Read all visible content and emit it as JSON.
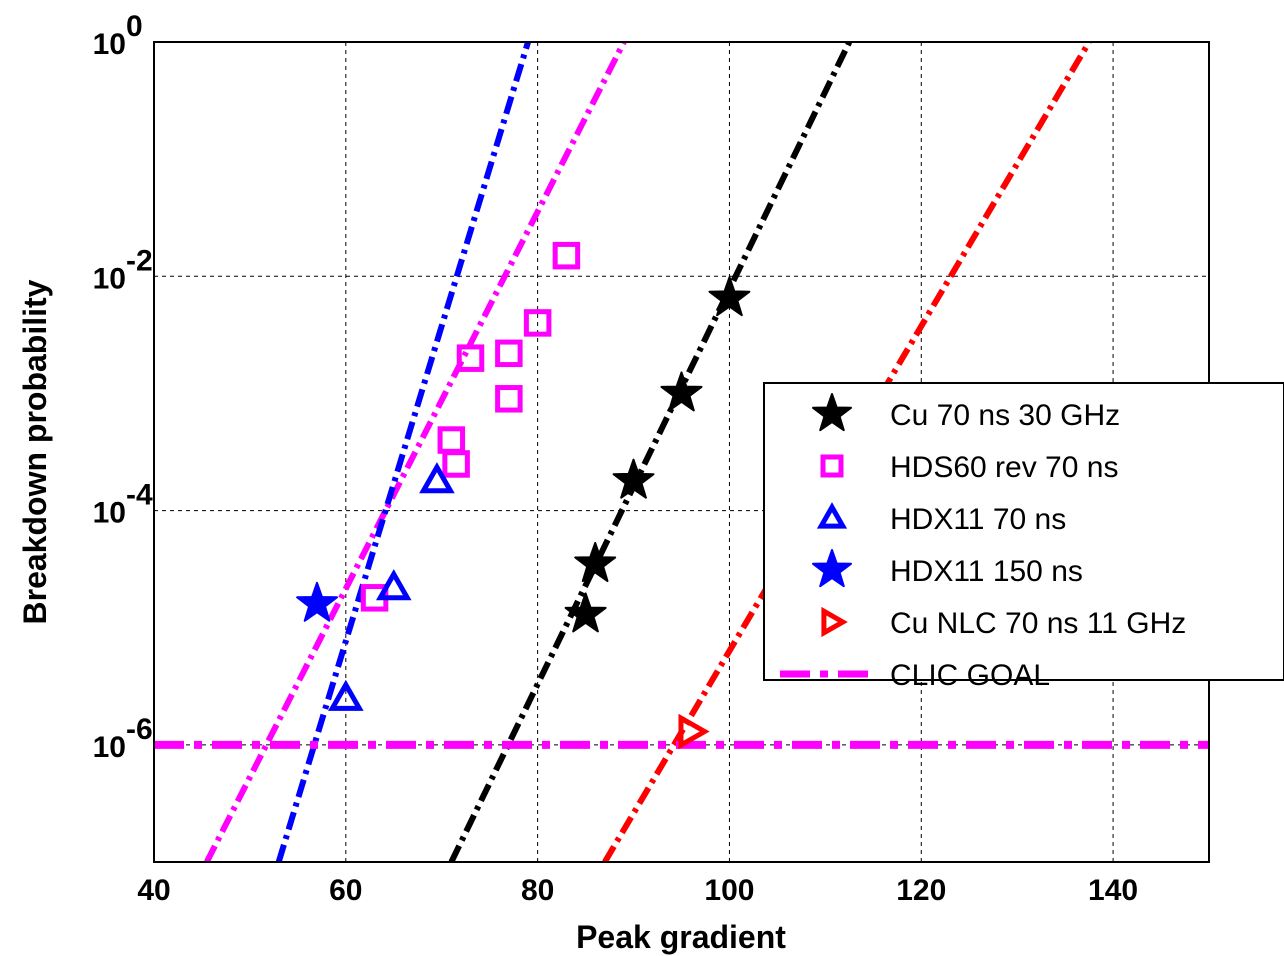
{
  "chart_data": {
    "type": "scatter",
    "title": "",
    "xlabel": "Peak gradient",
    "ylabel": "Breakdown probability",
    "xlim": [
      40,
      150
    ],
    "ylim": [
      1e-07,
      1
    ],
    "yscale": "log",
    "grid": true,
    "legend_position": "right",
    "x_ticks": [
      {
        "value": 40,
        "label": "40"
      },
      {
        "value": 60,
        "label": "60"
      },
      {
        "value": 80,
        "label": "80"
      },
      {
        "value": 100,
        "label": "100"
      },
      {
        "value": 120,
        "label": "120"
      },
      {
        "value": 140,
        "label": "140"
      }
    ],
    "y_ticks": [
      {
        "value": 1e-06,
        "exp": "-6"
      },
      {
        "value": 0.0001,
        "exp": "-4"
      },
      {
        "value": 0.01,
        "exp": "-2"
      },
      {
        "value": 1,
        "exp": "0"
      }
    ],
    "series": [
      {
        "name": "Cu 70 ns 30 GHz",
        "marker": "star",
        "color": "#000000",
        "points": [
          [
            85,
            1.3e-05
          ],
          [
            86,
            3.5e-05
          ],
          [
            90,
            0.00018
          ],
          [
            95,
            0.001
          ],
          [
            100,
            0.0065
          ]
        ]
      },
      {
        "name": "HDS60 rev 70 ns",
        "marker": "square",
        "color": "#ff00ff",
        "points": [
          [
            63,
            1.8e-05
          ],
          [
            71,
            0.0004
          ],
          [
            71.5,
            0.00025
          ],
          [
            73,
            0.002
          ],
          [
            77,
            0.0022
          ],
          [
            77,
            0.0009
          ],
          [
            80,
            0.004
          ],
          [
            83,
            0.015
          ]
        ]
      },
      {
        "name": "HDX11 70 ns",
        "marker": "triangle-up",
        "color": "#0000ff",
        "points": [
          [
            60,
            2.5e-06
          ],
          [
            65,
            2.2e-05
          ],
          [
            69.5,
            0.00018
          ]
        ]
      },
      {
        "name": "HDX11 150 ns",
        "marker": "star",
        "color": "#0000ff",
        "points": [
          [
            57,
            1.6e-05
          ]
        ]
      },
      {
        "name": "Cu NLC 70 ns 11 GHz",
        "marker": "triangle-right",
        "color": "#ff0000",
        "points": [
          [
            96,
            1.3e-06
          ]
        ]
      },
      {
        "name": "CLIC GOAL",
        "marker": "line",
        "color": "#ff00ff",
        "points": [
          [
            40,
            1e-06
          ],
          [
            150,
            1e-06
          ]
        ]
      }
    ],
    "fit_lines": [
      {
        "color": "#000000",
        "points": [
          [
            71,
            1e-07
          ],
          [
            112.5,
            1
          ]
        ]
      },
      {
        "color": "#ff00ff",
        "points": [
          [
            45.5,
            1e-07
          ],
          [
            89,
            1
          ]
        ]
      },
      {
        "color": "#0000ff",
        "points": [
          [
            53,
            1e-07
          ],
          [
            79,
            1
          ]
        ]
      },
      {
        "color": "#ff0000",
        "points": [
          [
            87,
            1e-07
          ],
          [
            137.5,
            1
          ]
        ]
      }
    ]
  }
}
